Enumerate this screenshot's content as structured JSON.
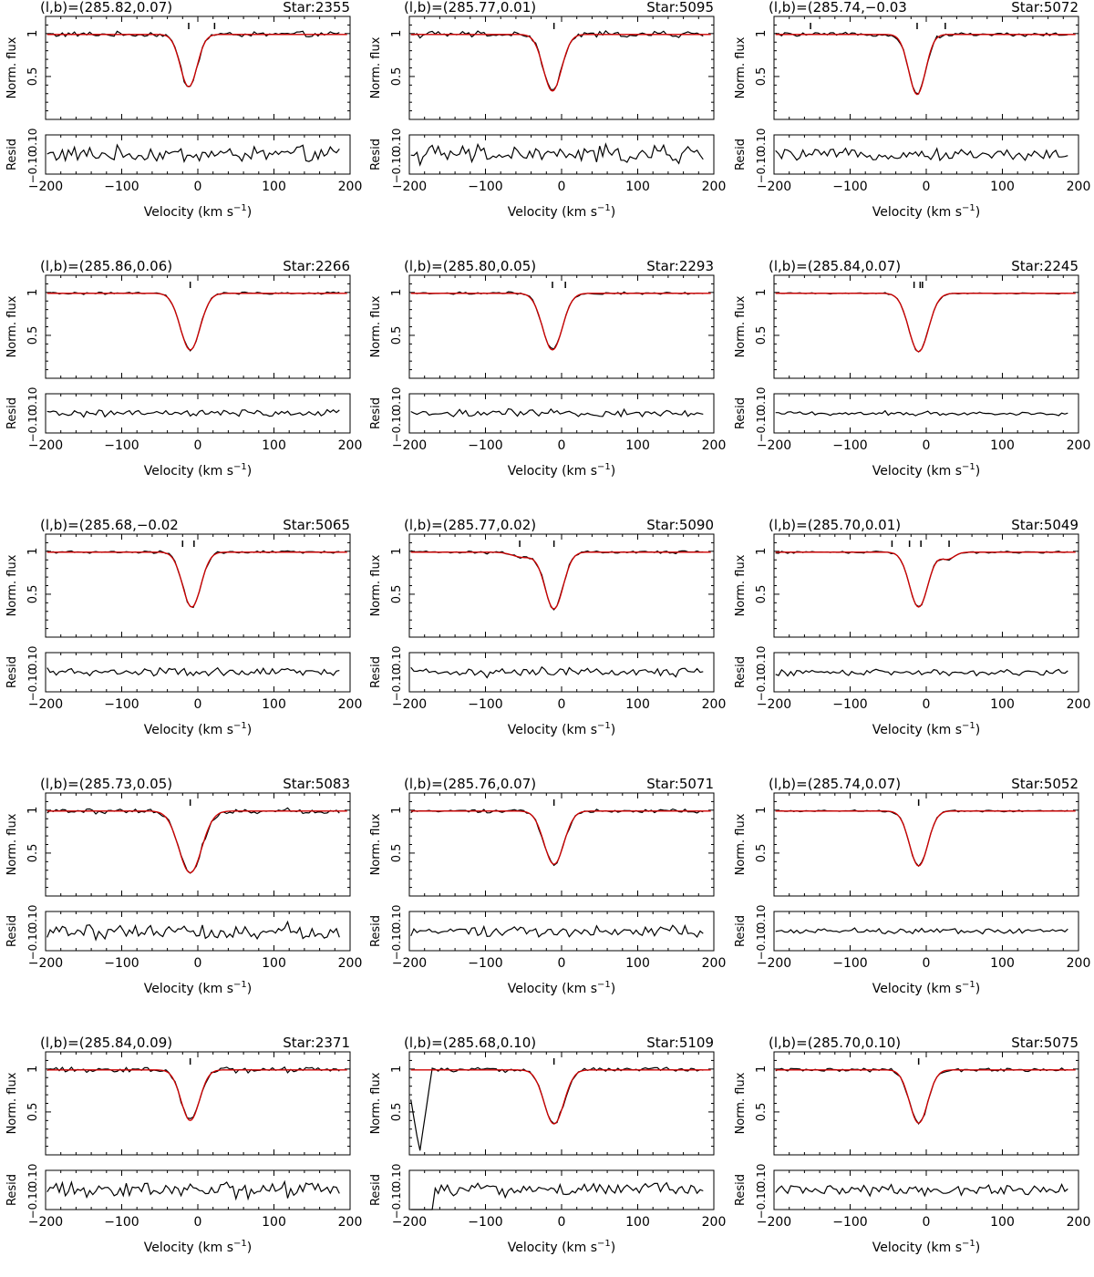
{
  "figure": {
    "flux_ylabel": "Norm. flux",
    "resid_ylabel": "Resid",
    "resid_tick_top": "0.10",
    "resid_tick_bottom": "−0.10",
    "xlabel_text": "Velocity  (km s",
    "xlabel_sup": "−1",
    "xlabel_close": ")",
    "flux_ticks": [
      "0.5",
      "1"
    ]
  },
  "chart_data": [
    {
      "type": "line",
      "title": "(l,b)=(285.82,0.07)",
      "star": "Star:2355",
      "xlim": [
        -200,
        200
      ],
      "flux_ylim": [
        0,
        1.2
      ],
      "resid_ylim": [
        -0.1,
        0.1
      ],
      "xticks": [
        -200,
        -100,
        0,
        100,
        200
      ],
      "xtick_labels": [
        "−200",
        "−100",
        "0",
        "100",
        "200"
      ],
      "profile": {
        "continuum": 0.99,
        "components": [
          {
            "v": -12,
            "depth": 0.61,
            "sigma": 11
          }
        ]
      },
      "markers": [
        -12,
        22
      ],
      "min_flux": 0.38,
      "noise": 0.03
    },
    {
      "type": "line",
      "title": "(l,b)=(285.77,0.01)",
      "star": "Star:5095",
      "xlim": [
        -200,
        200
      ],
      "flux_ylim": [
        0,
        1.2
      ],
      "resid_ylim": [
        -0.1,
        0.1
      ],
      "xticks": [
        -200,
        -100,
        0,
        100,
        200
      ],
      "xtick_labels": [
        "−200",
        "−100",
        "0",
        "100",
        "200"
      ],
      "profile": {
        "continuum": 0.99,
        "components": [
          {
            "v": -12,
            "depth": 0.66,
            "sigma": 12
          }
        ]
      },
      "markers": [
        -10
      ],
      "min_flux": 0.33,
      "noise": 0.035
    },
    {
      "type": "line",
      "title": "(l,b)=(285.74,−0.03",
      "star": "Star:5072",
      "xlim": [
        -200,
        200
      ],
      "flux_ylim": [
        0,
        1.2
      ],
      "resid_ylim": [
        -0.1,
        0.1
      ],
      "xticks": [
        -200,
        -100,
        0,
        100,
        200
      ],
      "xtick_labels": [
        "−200",
        "−100",
        "0",
        "100",
        "200"
      ],
      "profile": {
        "continuum": 0.99,
        "components": [
          {
            "v": -12,
            "depth": 0.7,
            "sigma": 11
          }
        ]
      },
      "markers": [
        -152,
        -12,
        25
      ],
      "min_flux": 0.29,
      "noise": 0.02
    },
    {
      "type": "line",
      "title": "(l,b)=(285.86,0.06)",
      "star": "Star:2266",
      "xlim": [
        -200,
        200
      ],
      "flux_ylim": [
        0,
        1.2
      ],
      "resid_ylim": [
        -0.1,
        0.1
      ],
      "xticks": [
        -200,
        -100,
        0,
        100,
        200
      ],
      "xtick_labels": [
        "−200",
        "−100",
        "0",
        "100",
        "200"
      ],
      "profile": {
        "continuum": 0.99,
        "components": [
          {
            "v": -10,
            "depth": 0.66,
            "sigma": 13
          }
        ]
      },
      "markers": [
        -10
      ],
      "min_flux": 0.33,
      "noise": 0.012
    },
    {
      "type": "line",
      "title": "(l,b)=(285.80,0.05)",
      "star": "Star:2293",
      "xlim": [
        -200,
        200
      ],
      "flux_ylim": [
        0,
        1.2
      ],
      "resid_ylim": [
        -0.1,
        0.1
      ],
      "xticks": [
        -200,
        -100,
        0,
        100,
        200
      ],
      "xtick_labels": [
        "−200",
        "−100",
        "0",
        "100",
        "200"
      ],
      "profile": {
        "continuum": 0.99,
        "components": [
          {
            "v": -12,
            "depth": 0.66,
            "sigma": 13
          }
        ]
      },
      "markers": [
        -12,
        5
      ],
      "min_flux": 0.33,
      "noise": 0.015
    },
    {
      "type": "line",
      "title": "(l,b)=(285.84,0.07)",
      "star": "Star:2245",
      "xlim": [
        -200,
        200
      ],
      "flux_ylim": [
        0,
        1.2
      ],
      "resid_ylim": [
        -0.1,
        0.1
      ],
      "xticks": [
        -200,
        -100,
        0,
        100,
        200
      ],
      "xtick_labels": [
        "−200",
        "−100",
        "0",
        "100",
        "200"
      ],
      "profile": {
        "continuum": 0.99,
        "components": [
          {
            "v": -10,
            "depth": 0.68,
            "sigma": 13
          }
        ]
      },
      "markers": [
        -16,
        -8,
        -5
      ],
      "min_flux": 0.31,
      "noise": 0.008
    },
    {
      "type": "line",
      "title": "(l,b)=(285.68,−0.02",
      "star": "Star:5065",
      "xlim": [
        -200,
        200
      ],
      "flux_ylim": [
        0,
        1.2
      ],
      "resid_ylim": [
        -0.1,
        0.1
      ],
      "xticks": [
        -200,
        -100,
        0,
        100,
        200
      ],
      "xtick_labels": [
        "−200",
        "−100",
        "0",
        "100",
        "200"
      ],
      "profile": {
        "continuum": 0.99,
        "components": [
          {
            "v": -8,
            "depth": 0.64,
            "sigma": 12
          }
        ]
      },
      "markers": [
        -20,
        -5
      ],
      "min_flux": 0.35,
      "noise": 0.015
    },
    {
      "type": "line",
      "title": "(l,b)=(285.77,0.02)",
      "star": "Star:5090",
      "xlim": [
        -200,
        200
      ],
      "flux_ylim": [
        0,
        1.2
      ],
      "resid_ylim": [
        -0.1,
        0.1
      ],
      "xticks": [
        -200,
        -100,
        0,
        100,
        200
      ],
      "xtick_labels": [
        "−200",
        "−100",
        "0",
        "100",
        "200"
      ],
      "profile": {
        "continuum": 0.99,
        "components": [
          {
            "v": -10,
            "depth": 0.66,
            "sigma": 12
          },
          {
            "v": -50,
            "depth": 0.06,
            "sigma": 14
          }
        ]
      },
      "markers": [
        -55,
        -10
      ],
      "min_flux": 0.32,
      "noise": 0.018
    },
    {
      "type": "line",
      "title": "(l,b)=(285.70,0.01)",
      "star": "Star:5049",
      "xlim": [
        -200,
        200
      ],
      "flux_ylim": [
        0,
        1.2
      ],
      "resid_ylim": [
        -0.1,
        0.1
      ],
      "xticks": [
        -200,
        -100,
        0,
        100,
        200
      ],
      "xtick_labels": [
        "−200",
        "−100",
        "0",
        "100",
        "200"
      ],
      "profile": {
        "continuum": 0.99,
        "components": [
          {
            "v": -10,
            "depth": 0.64,
            "sigma": 12
          },
          {
            "v": 28,
            "depth": 0.08,
            "sigma": 9
          }
        ]
      },
      "markers": [
        -45,
        -22,
        -7,
        30
      ],
      "min_flux": 0.33,
      "noise": 0.012
    },
    {
      "type": "line",
      "title": "(l,b)=(285.73,0.05)",
      "star": "Star:5083",
      "xlim": [
        -200,
        200
      ],
      "flux_ylim": [
        0,
        1.2
      ],
      "resid_ylim": [
        -0.1,
        0.1
      ],
      "xticks": [
        -200,
        -100,
        0,
        100,
        200
      ],
      "xtick_labels": [
        "−200",
        "−100",
        "0",
        "100",
        "200"
      ],
      "profile": {
        "continuum": 0.99,
        "components": [
          {
            "v": -10,
            "depth": 0.72,
            "sigma": 15
          }
        ]
      },
      "markers": [
        -10
      ],
      "min_flux": 0.27,
      "noise": 0.03
    },
    {
      "type": "line",
      "title": "(l,b)=(285.76,0.07)",
      "star": "Star:5071",
      "xlim": [
        -200,
        200
      ],
      "flux_ylim": [
        0,
        1.2
      ],
      "resid_ylim": [
        -0.1,
        0.1
      ],
      "xticks": [
        -200,
        -100,
        0,
        100,
        200
      ],
      "xtick_labels": [
        "−200",
        "−100",
        "0",
        "100",
        "200"
      ],
      "profile": {
        "continuum": 0.99,
        "components": [
          {
            "v": -10,
            "depth": 0.62,
            "sigma": 13
          }
        ]
      },
      "markers": [
        -10
      ],
      "min_flux": 0.37,
      "noise": 0.02
    },
    {
      "type": "line",
      "title": "(l,b)=(285.74,0.07)",
      "star": "Star:5052",
      "xlim": [
        -200,
        200
      ],
      "flux_ylim": [
        0,
        1.2
      ],
      "resid_ylim": [
        -0.1,
        0.1
      ],
      "xticks": [
        -200,
        -100,
        0,
        100,
        200
      ],
      "xtick_labels": [
        "−200",
        "−100",
        "0",
        "100",
        "200"
      ],
      "profile": {
        "continuum": 0.99,
        "components": [
          {
            "v": -10,
            "depth": 0.64,
            "sigma": 12
          }
        ]
      },
      "markers": [
        -10
      ],
      "min_flux": 0.35,
      "noise": 0.01
    },
    {
      "type": "line",
      "title": "(l,b)=(285.84,0.09)",
      "star": "Star:2371",
      "xlim": [
        -200,
        200
      ],
      "flux_ylim": [
        0,
        1.2
      ],
      "resid_ylim": [
        -0.1,
        0.1
      ],
      "xticks": [
        -200,
        -100,
        0,
        100,
        200
      ],
      "xtick_labels": [
        "−200",
        "−100",
        "0",
        "100",
        "200"
      ],
      "profile": {
        "continuum": 0.99,
        "components": [
          {
            "v": -10,
            "depth": 0.59,
            "sigma": 12
          }
        ]
      },
      "markers": [
        -10
      ],
      "min_flux": 0.4,
      "noise": 0.03
    },
    {
      "type": "line",
      "title": "(l,b)=(285.68,0.10)",
      "star": "Star:5109",
      "xlim": [
        -200,
        200
      ],
      "flux_ylim": [
        0,
        1.2
      ],
      "resid_ylim": [
        -0.1,
        0.1
      ],
      "xticks": [
        -200,
        -100,
        0,
        100,
        200
      ],
      "xtick_labels": [
        "−200",
        "−100",
        "0",
        "100",
        "200"
      ],
      "profile": {
        "continuum": 0.99,
        "components": [
          {
            "v": -10,
            "depth": 0.63,
            "sigma": 13
          }
        ]
      },
      "markers": [
        -10
      ],
      "min_flux": 0.36,
      "noise": 0.025,
      "artifact": {
        "from": -200,
        "to": -170
      }
    },
    {
      "type": "line",
      "title": "(l,b)=(285.70,0.10)",
      "star": "Star:5075",
      "xlim": [
        -200,
        200
      ],
      "flux_ylim": [
        0,
        1.2
      ],
      "resid_ylim": [
        -0.1,
        0.1
      ],
      "xticks": [
        -200,
        -100,
        0,
        100,
        200
      ],
      "xtick_labels": [
        "−200",
        "−100",
        "0",
        "100",
        "200"
      ],
      "profile": {
        "continuum": 0.99,
        "components": [
          {
            "v": -10,
            "depth": 0.62,
            "sigma": 12
          }
        ]
      },
      "markers": [
        -10
      ],
      "min_flux": 0.37,
      "noise": 0.02
    }
  ]
}
